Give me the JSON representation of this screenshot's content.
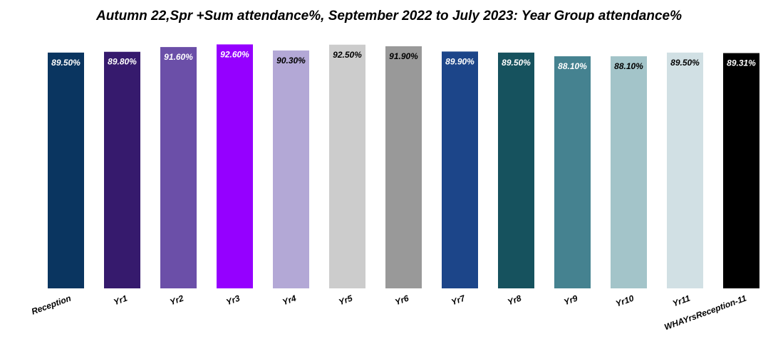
{
  "chart_data": {
    "type": "bar",
    "title": "Autumn 22,Spr +Sum attendance%, September 2022 to July 2023: Year Group attendance%",
    "categories": [
      "Reception",
      "Yr1",
      "Yr2",
      "Yr3",
      "Yr4",
      "Yr5",
      "Yr6",
      "Yr7",
      "Yr8",
      "Yr9",
      "Yr10",
      "Yr11",
      "WHAYrsReception-11"
    ],
    "values": [
      89.5,
      89.8,
      91.6,
      92.6,
      90.3,
      92.5,
      91.9,
      89.9,
      89.5,
      88.1,
      88.1,
      89.5,
      89.31
    ],
    "labels": [
      "89.50%",
      "89.80%",
      "91.60%",
      "92.60%",
      "90.30%",
      "92.50%",
      "91.90%",
      "89.90%",
      "89.50%",
      "88.10%",
      "88.10%",
      "89.50%",
      "89.31%"
    ],
    "colors": [
      "#0a3560",
      "#361a6d",
      "#6b4fa8",
      "#9500ff",
      "#b3a8d6",
      "#cccccc",
      "#999999",
      "#1c4589",
      "#16525e",
      "#458290",
      "#a3c4c9",
      "#d1e0e4",
      "#000000"
    ],
    "label_colors": [
      "#ffffff",
      "#ffffff",
      "#ffffff",
      "#ffffff",
      "#000000",
      "#000000",
      "#000000",
      "#ffffff",
      "#ffffff",
      "#ffffff",
      "#000000",
      "#000000",
      "#ffffff"
    ],
    "ylim": [
      0,
      100
    ],
    "xlabel": "",
    "ylabel": "",
    "grid": false,
    "legend": "none"
  }
}
